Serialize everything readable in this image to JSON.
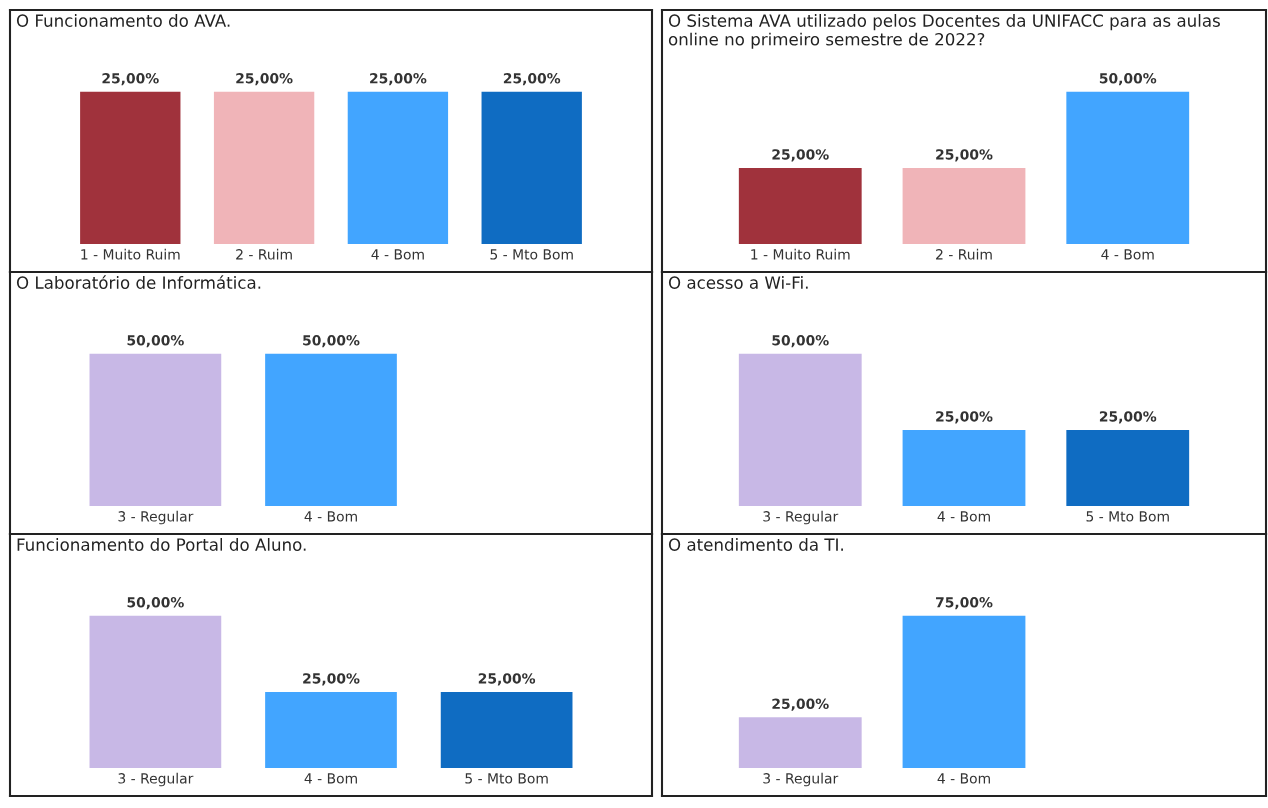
{
  "chart_data": [
    {
      "type": "bar",
      "title": "O Funcionamento do AVA.",
      "categories": [
        "1 - Muito Ruim",
        "2 - Ruim",
        "4 - Bom",
        "5 - Mto Bom"
      ],
      "values": [
        25.0,
        25.0,
        25.0,
        25.0
      ],
      "colors": [
        "#a0323c",
        "#f0b4b8",
        "#42a5ff",
        "#0f6cc2"
      ],
      "value_labels": [
        "25,00%",
        "25,00%",
        "25,00%",
        "25,00%"
      ],
      "tick_labels": "x"
    },
    {
      "type": "bar",
      "title": "O Sistema AVA utilizado pelos Docentes da UNIFACC para as aulas online no primeiro semestre de 2022?",
      "categories": [
        "1 - Muito Ruim",
        "2 - Ruim",
        "4 - Bom"
      ],
      "values": [
        25.0,
        25.0,
        50.0
      ],
      "colors": [
        "#a0323c",
        "#f0b4b8",
        "#42a5ff"
      ],
      "value_labels": [
        "25,00%",
        "25,00%",
        "50,00%"
      ],
      "tick_labels": "x"
    },
    {
      "type": "bar",
      "title": "O Laboratório de Informática.",
      "categories": [
        "3 - Regular",
        "4 - Bom"
      ],
      "values": [
        50.0,
        50.0
      ],
      "colors": [
        "#c8b8e6",
        "#42a5ff"
      ],
      "value_labels": [
        "50,00%",
        "50,00%"
      ],
      "tick_labels": "x"
    },
    {
      "type": "bar",
      "title": "O acesso a Wi-Fi.",
      "categories": [
        "3 - Regular",
        "4 - Bom",
        "5 - Mto Bom"
      ],
      "values": [
        50.0,
        25.0,
        25.0
      ],
      "colors": [
        "#c8b8e6",
        "#42a5ff",
        "#0f6cc2"
      ],
      "value_labels": [
        "50,00%",
        "25,00%",
        "25,00%"
      ],
      "tick_labels": "x"
    },
    {
      "type": "bar",
      "title": "Funcionamento do Portal do Aluno.",
      "categories": [
        "3 - Regular",
        "4 - Bom",
        "5 - Mto Bom"
      ],
      "values": [
        50.0,
        25.0,
        25.0
      ],
      "colors": [
        "#c8b8e6",
        "#42a5ff",
        "#0f6cc2"
      ],
      "value_labels": [
        "50,00%",
        "25,00%",
        "25,00%"
      ],
      "tick_labels": "x"
    },
    {
      "type": "bar",
      "title": "O atendimento da TI.",
      "categories": [
        "3 - Regular",
        "4 - Bom"
      ],
      "values": [
        25.0,
        75.0
      ],
      "colors": [
        "#c8b8e6",
        "#42a5ff"
      ],
      "value_labels": [
        "25,00%",
        "75,00%"
      ],
      "tick_labels": "x"
    }
  ]
}
